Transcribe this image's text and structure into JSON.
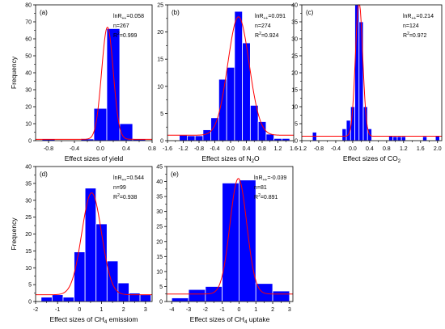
{
  "chart_data": [
    {
      "panel": "(a)",
      "type": "bar",
      "xlabel": "Effect sizes of yield",
      "ylabel": "Frequency",
      "xlim": [
        -1.0,
        0.8
      ],
      "ylim": [
        0,
        80
      ],
      "xticks": [
        -0.8,
        -0.4,
        0.0,
        0.4,
        0.8
      ],
      "xtick_labels": [
        "-0.8",
        "-0.4",
        "0.0",
        "0.4",
        "0.8"
      ],
      "yticks": [
        0,
        10,
        20,
        30,
        40,
        50,
        60,
        70,
        80
      ],
      "bin_width": 0.2,
      "bins": [
        {
          "x0": -0.9,
          "x1": -0.7,
          "y": 1
        },
        {
          "x0": -0.3,
          "x1": -0.1,
          "y": 1
        },
        {
          "x0": -0.1,
          "x1": 0.1,
          "y": 19
        },
        {
          "x0": 0.1,
          "x1": 0.3,
          "y": 66
        },
        {
          "x0": 0.3,
          "x1": 0.5,
          "y": 10
        },
        {
          "x0": 0.5,
          "x1": 0.7,
          "y": 1
        }
      ],
      "fit": {
        "baseline": 0.8,
        "amp": 66,
        "mean": 0.11,
        "sd": 0.09
      },
      "stats": {
        "lnR": "=0.058",
        "n": "n=267",
        "r2": "=0.999"
      }
    },
    {
      "panel": "(b)",
      "type": "bar",
      "xlabel": "Effect sizes of N",
      "xlabel_sub": "2",
      "xlabel_after": "O",
      "ylabel": "",
      "xlim": [
        -1.6,
        1.6
      ],
      "ylim": [
        0,
        25
      ],
      "xticks": [
        -1.6,
        -1.2,
        -0.8,
        -0.4,
        0.0,
        0.4,
        0.8,
        1.2,
        1.6
      ],
      "xtick_labels": [
        "-1.6",
        "-1.2",
        "-0.8",
        "-0.4",
        "0.0",
        "0.4",
        "0.8",
        "1.2",
        "1.6"
      ],
      "yticks": [
        0,
        5,
        10,
        15,
        20,
        25
      ],
      "bin_width": 0.2,
      "bins": [
        {
          "x0": -1.3,
          "x1": -1.1,
          "y": 1
        },
        {
          "x0": -1.1,
          "x1": -0.9,
          "y": 0.9
        },
        {
          "x0": -0.9,
          "x1": -0.7,
          "y": 0.9
        },
        {
          "x0": -0.7,
          "x1": -0.5,
          "y": 2
        },
        {
          "x0": -0.5,
          "x1": -0.3,
          "y": 4.2
        },
        {
          "x0": -0.3,
          "x1": -0.1,
          "y": 11.3
        },
        {
          "x0": -0.1,
          "x1": 0.1,
          "y": 13.5
        },
        {
          "x0": 0.1,
          "x1": 0.3,
          "y": 23.8
        },
        {
          "x0": 0.3,
          "x1": 0.5,
          "y": 18
        },
        {
          "x0": 0.5,
          "x1": 0.7,
          "y": 6.5
        },
        {
          "x0": 0.7,
          "x1": 0.9,
          "y": 3.5
        },
        {
          "x0": 0.9,
          "x1": 1.1,
          "y": 1.2
        },
        {
          "x0": 1.1,
          "x1": 1.3,
          "y": 0.4
        },
        {
          "x0": 1.3,
          "x1": 1.5,
          "y": 0.4
        }
      ],
      "fit": {
        "baseline": 1.0,
        "amp": 21.8,
        "mean": 0.2,
        "sd": 0.27
      },
      "stats": {
        "lnR": "=0.091",
        "n": "n=274",
        "r2": "=0.924"
      }
    },
    {
      "panel": "(c)",
      "type": "bar",
      "xlabel": "Effect sizes of CO",
      "xlabel_sub": "2",
      "xlabel_after": "",
      "ylabel": "",
      "xlim": [
        -1.2,
        2.1
      ],
      "ylim": [
        0,
        40
      ],
      "xticks": [
        -1.2,
        -0.8,
        -0.4,
        0.0,
        0.4,
        0.8,
        1.2,
        1.6,
        2.0
      ],
      "xtick_labels": [
        "-1.2",
        "-0.8",
        "-0.4",
        "0.0",
        "0.4",
        "0.8",
        "1.2",
        "1.6",
        "2.0"
      ],
      "yticks": [
        0,
        5,
        10,
        15,
        20,
        25,
        30,
        35,
        40
      ],
      "bin_width": 0.1,
      "bins": [
        {
          "x0": -0.95,
          "x1": -0.85,
          "y": 2.5
        },
        {
          "x0": -0.25,
          "x1": -0.15,
          "y": 3.5
        },
        {
          "x0": -0.15,
          "x1": -0.05,
          "y": 6
        },
        {
          "x0": -0.05,
          "x1": 0.05,
          "y": 10
        },
        {
          "x0": 0.05,
          "x1": 0.15,
          "y": 40
        },
        {
          "x0": 0.15,
          "x1": 0.25,
          "y": 35
        },
        {
          "x0": 0.25,
          "x1": 0.35,
          "y": 10
        },
        {
          "x0": 0.35,
          "x1": 0.45,
          "y": 3.5
        },
        {
          "x0": 0.85,
          "x1": 0.95,
          "y": 1.5
        },
        {
          "x0": 0.95,
          "x1": 1.05,
          "y": 1.2
        },
        {
          "x0": 1.05,
          "x1": 1.15,
          "y": 1.2
        },
        {
          "x0": 1.15,
          "x1": 1.25,
          "y": 1.2
        },
        {
          "x0": 1.65,
          "x1": 1.75,
          "y": 1.2
        },
        {
          "x0": 1.95,
          "x1": 2.05,
          "y": 1.5
        }
      ],
      "fit": {
        "baseline": 1.3,
        "amp": 39.6,
        "mean": 0.15,
        "sd": 0.085
      },
      "stats": {
        "lnR": "=0.214",
        "n": "n=124",
        "r2": "=0.972"
      }
    },
    {
      "panel": "(d)",
      "type": "bar",
      "xlabel": "Effect sizes of CH",
      "xlabel_sub": "4",
      "xlabel_after": " emissiom",
      "ylabel": "Frequency",
      "xlim": [
        -2.0,
        3.3
      ],
      "ylim": [
        0,
        40
      ],
      "xticks": [
        -2,
        -1,
        0,
        1,
        2,
        3
      ],
      "xtick_labels": [
        "-2",
        "-1",
        "0",
        "1",
        "2",
        "3"
      ],
      "yticks": [
        0,
        5,
        10,
        15,
        20,
        25,
        30,
        35,
        40
      ],
      "bin_width": 0.5,
      "bins": [
        {
          "x0": -1.75,
          "x1": -1.25,
          "y": 1.3
        },
        {
          "x0": -1.25,
          "x1": -0.75,
          "y": 2
        },
        {
          "x0": -0.75,
          "x1": -0.25,
          "y": 1.3
        },
        {
          "x0": -0.25,
          "x1": 0.25,
          "y": 14.7
        },
        {
          "x0": 0.25,
          "x1": 0.75,
          "y": 33.6
        },
        {
          "x0": 0.75,
          "x1": 1.25,
          "y": 23
        },
        {
          "x0": 1.25,
          "x1": 1.75,
          "y": 12
        },
        {
          "x0": 1.75,
          "x1": 2.25,
          "y": 5.5
        },
        {
          "x0": 2.25,
          "x1": 2.75,
          "y": 2.5
        },
        {
          "x0": 2.75,
          "x1": 3.25,
          "y": 2
        }
      ],
      "fit": {
        "baseline": 2.0,
        "amp": 30.2,
        "mean": 0.55,
        "sd": 0.45
      },
      "stats": {
        "lnR": "=0.544",
        "n": "n=99",
        "r2": "=0.938"
      }
    },
    {
      "panel": "(e)",
      "type": "bar",
      "xlabel": "Effect sizes of CH",
      "xlabel_sub": "4",
      "xlabel_after": " uptake",
      "ylabel": "",
      "xlim": [
        -4.3,
        3.2
      ],
      "ylim": [
        0,
        45
      ],
      "xticks": [
        -4,
        -3,
        -2,
        -1,
        0,
        1,
        2,
        3
      ],
      "xtick_labels": [
        "-4",
        "-3",
        "-2",
        "-1",
        "0",
        "1",
        "2",
        "3"
      ],
      "yticks": [
        0,
        5,
        10,
        15,
        20,
        25,
        30,
        35,
        40,
        45
      ],
      "bin_width": 1,
      "bins": [
        {
          "x0": -4.0,
          "x1": -3.0,
          "y": 1.2
        },
        {
          "x0": -3.0,
          "x1": -2.0,
          "y": 4
        },
        {
          "x0": -2.0,
          "x1": -1.0,
          "y": 5
        },
        {
          "x0": -1.0,
          "x1": 0.0,
          "y": 39.5
        },
        {
          "x0": 0.0,
          "x1": 1.0,
          "y": 40.5
        },
        {
          "x0": 1.0,
          "x1": 2.0,
          "y": 6
        },
        {
          "x0": 2.0,
          "x1": 3.0,
          "y": 3.5
        }
      ],
      "fit": {
        "baseline": 2.5,
        "amp": 38.5,
        "mean": -0.04,
        "sd": 0.5
      },
      "stats": {
        "lnR": "=-0.039",
        "n": "n=81",
        "r2": "=0.891"
      }
    }
  ],
  "colors": {
    "bar": "#0000ff",
    "bar_edge": "#ffffff",
    "fit": "#ff0000",
    "axis": "#000000"
  }
}
